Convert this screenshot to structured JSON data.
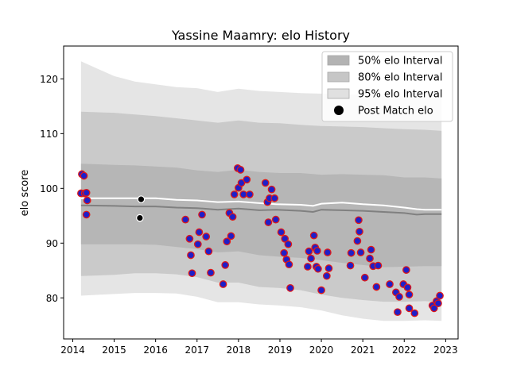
{
  "chart_data": {
    "type": "scatter",
    "title": "Yassine Maamry: elo History",
    "xlabel": "",
    "ylabel": "elo score",
    "xlim": [
      2013.78,
      2023.3
    ],
    "ylim": [
      72.5,
      126
    ],
    "x_ticks": [
      "2014",
      "2015",
      "2016",
      "2017",
      "2018",
      "2019",
      "2020",
      "2021",
      "2022",
      "2023"
    ],
    "y_ticks": [
      "80",
      "90",
      "100",
      "110",
      "120"
    ],
    "legend_position": "top-right",
    "grid": false,
    "legend": [
      {
        "label": "50% elo Interval",
        "color": "#b3b3b3",
        "kind": "band"
      },
      {
        "label": "80% elo Interval",
        "color": "#c6c6c6",
        "kind": "band"
      },
      {
        "label": "95% elo Interval",
        "color": "#e0e0e0",
        "kind": "band"
      },
      {
        "label": "Post Match elo",
        "color": "#000000",
        "kind": "marker"
      }
    ],
    "bands": {
      "x": [
        2014.2,
        2015.0,
        2015.5,
        2016.0,
        2016.5,
        2017.0,
        2017.5,
        2018.0,
        2018.5,
        2019.0,
        2019.5,
        2020.0,
        2020.5,
        2021.0,
        2021.5,
        2022.0,
        2022.5,
        2022.9
      ],
      "q95_upper": [
        123.2,
        120.5,
        119.5,
        119.0,
        118.5,
        118.3,
        117.6,
        118.2,
        117.8,
        117.6,
        117.4,
        117.3,
        117.2,
        117.1,
        117.0,
        116.8,
        116.7,
        116.6
      ],
      "q95_lower": [
        80.4,
        80.7,
        80.9,
        80.9,
        80.8,
        80.2,
        79.2,
        79.2,
        78.8,
        78.6,
        78.3,
        77.7,
        76.8,
        76.2,
        75.8,
        75.8,
        75.9,
        75.8
      ],
      "q80_upper": [
        114.0,
        113.8,
        113.5,
        113.2,
        112.8,
        112.4,
        112.0,
        112.4,
        112.0,
        111.9,
        111.6,
        111.4,
        111.3,
        111.2,
        111.0,
        110.8,
        110.7,
        110.5
      ],
      "q80_lower": [
        84.0,
        84.2,
        84.5,
        84.5,
        84.3,
        83.8,
        82.8,
        82.8,
        82.0,
        81.8,
        81.4,
        80.6,
        80.0,
        79.6,
        79.3,
        79.3,
        79.4,
        79.2
      ],
      "q50_upper": [
        104.5,
        104.3,
        104.2,
        104.0,
        103.8,
        103.3,
        103.0,
        103.4,
        103.0,
        102.8,
        102.8,
        102.5,
        102.6,
        102.5,
        102.4,
        102.0,
        102.0,
        101.8
      ],
      "q50_lower": [
        89.8,
        89.8,
        89.8,
        89.7,
        89.3,
        88.9,
        88.3,
        88.5,
        87.8,
        87.5,
        87.3,
        86.9,
        86.4,
        86.0,
        85.6,
        85.7,
        85.8,
        85.8
      ]
    },
    "mean_line": {
      "color": "#808080",
      "x": [
        2014.2,
        2015.0,
        2015.5,
        2016.0,
        2016.5,
        2017.0,
        2017.5,
        2018.0,
        2018.5,
        2018.9,
        2019.5,
        2019.8,
        2020.0,
        2020.5,
        2021.0,
        2021.5,
        2022.0,
        2022.3,
        2022.5,
        2022.9
      ],
      "y": [
        96.9,
        96.8,
        96.7,
        96.7,
        96.5,
        96.4,
        96.1,
        96.3,
        96.0,
        96.1,
        95.9,
        95.7,
        96.1,
        96.0,
        95.9,
        95.7,
        95.5,
        95.2,
        95.3,
        95.3
      ]
    },
    "median_line": {
      "color": "#ffffff",
      "x": [
        2014.2,
        2015.0,
        2015.5,
        2016.0,
        2016.5,
        2017.0,
        2017.5,
        2018.0,
        2018.5,
        2018.9,
        2019.5,
        2019.8,
        2020.0,
        2020.5,
        2021.0,
        2021.5,
        2022.0,
        2022.3,
        2022.5,
        2022.9
      ],
      "y": [
        98.2,
        98.2,
        98.2,
        98.2,
        97.9,
        97.8,
        97.5,
        97.6,
        97.3,
        97.1,
        97.0,
        96.8,
        97.2,
        97.4,
        97.1,
        96.9,
        96.5,
        96.2,
        96.1,
        96.1
      ]
    },
    "series": [
      {
        "marker": "black",
        "points": [
          [
            2015.65,
            98.0
          ],
          [
            2015.62,
            94.6
          ]
        ]
      },
      {
        "marker": "blue-red",
        "points": [
          [
            2014.2,
            99.1
          ],
          [
            2014.22,
            102.6
          ],
          [
            2014.27,
            102.3
          ],
          [
            2014.29,
            99.1
          ],
          [
            2014.33,
            99.2
          ],
          [
            2014.35,
            97.8
          ],
          [
            2014.33,
            95.2
          ],
          [
            2016.72,
            94.3
          ],
          [
            2016.82,
            90.8
          ],
          [
            2016.85,
            87.8
          ],
          [
            2016.88,
            84.5
          ],
          [
            2017.02,
            89.8
          ],
          [
            2017.05,
            92.0
          ],
          [
            2017.12,
            95.2
          ],
          [
            2017.22,
            91.2
          ],
          [
            2017.28,
            88.5
          ],
          [
            2017.33,
            84.6
          ],
          [
            2017.63,
            82.5
          ],
          [
            2017.68,
            86.0
          ],
          [
            2017.72,
            90.3
          ],
          [
            2017.78,
            95.5
          ],
          [
            2017.82,
            91.3
          ],
          [
            2017.86,
            94.8
          ],
          [
            2017.9,
            98.9
          ],
          [
            2017.98,
            103.7
          ],
          [
            2018.0,
            100.1
          ],
          [
            2018.05,
            103.4
          ],
          [
            2018.07,
            101.0
          ],
          [
            2018.12,
            98.9
          ],
          [
            2018.2,
            101.6
          ],
          [
            2018.27,
            98.9
          ],
          [
            2018.65,
            101.0
          ],
          [
            2018.7,
            97.5
          ],
          [
            2018.72,
            93.8
          ],
          [
            2018.75,
            98.2
          ],
          [
            2018.8,
            99.8
          ],
          [
            2018.87,
            98.2
          ],
          [
            2018.9,
            94.3
          ],
          [
            2019.03,
            92.0
          ],
          [
            2019.1,
            88.2
          ],
          [
            2019.12,
            90.8
          ],
          [
            2019.16,
            87.0
          ],
          [
            2019.2,
            89.8
          ],
          [
            2019.22,
            86.1
          ],
          [
            2019.25,
            81.8
          ],
          [
            2019.67,
            85.7
          ],
          [
            2019.7,
            88.5
          ],
          [
            2019.75,
            87.2
          ],
          [
            2019.82,
            91.4
          ],
          [
            2019.85,
            89.2
          ],
          [
            2019.88,
            85.7
          ],
          [
            2019.9,
            88.6
          ],
          [
            2019.92,
            85.3
          ],
          [
            2020.0,
            81.4
          ],
          [
            2020.13,
            84.0
          ],
          [
            2020.15,
            88.3
          ],
          [
            2020.18,
            85.4
          ],
          [
            2020.7,
            85.9
          ],
          [
            2020.72,
            88.2
          ],
          [
            2020.87,
            90.4
          ],
          [
            2020.9,
            94.2
          ],
          [
            2020.92,
            92.1
          ],
          [
            2020.95,
            88.3
          ],
          [
            2021.05,
            83.7
          ],
          [
            2021.17,
            87.2
          ],
          [
            2021.2,
            88.8
          ],
          [
            2021.25,
            85.8
          ],
          [
            2021.33,
            82.0
          ],
          [
            2021.37,
            85.9
          ],
          [
            2021.65,
            82.5
          ],
          [
            2021.8,
            81.0
          ],
          [
            2021.84,
            77.4
          ],
          [
            2021.88,
            80.2
          ],
          [
            2021.98,
            82.5
          ],
          [
            2022.05,
            85.1
          ],
          [
            2022.08,
            81.9
          ],
          [
            2022.12,
            80.6
          ],
          [
            2022.12,
            78.1
          ],
          [
            2022.25,
            77.2
          ],
          [
            2022.68,
            78.6
          ],
          [
            2022.72,
            78.1
          ],
          [
            2022.78,
            79.4
          ],
          [
            2022.82,
            79.0
          ],
          [
            2022.86,
            80.4
          ]
        ]
      }
    ]
  }
}
